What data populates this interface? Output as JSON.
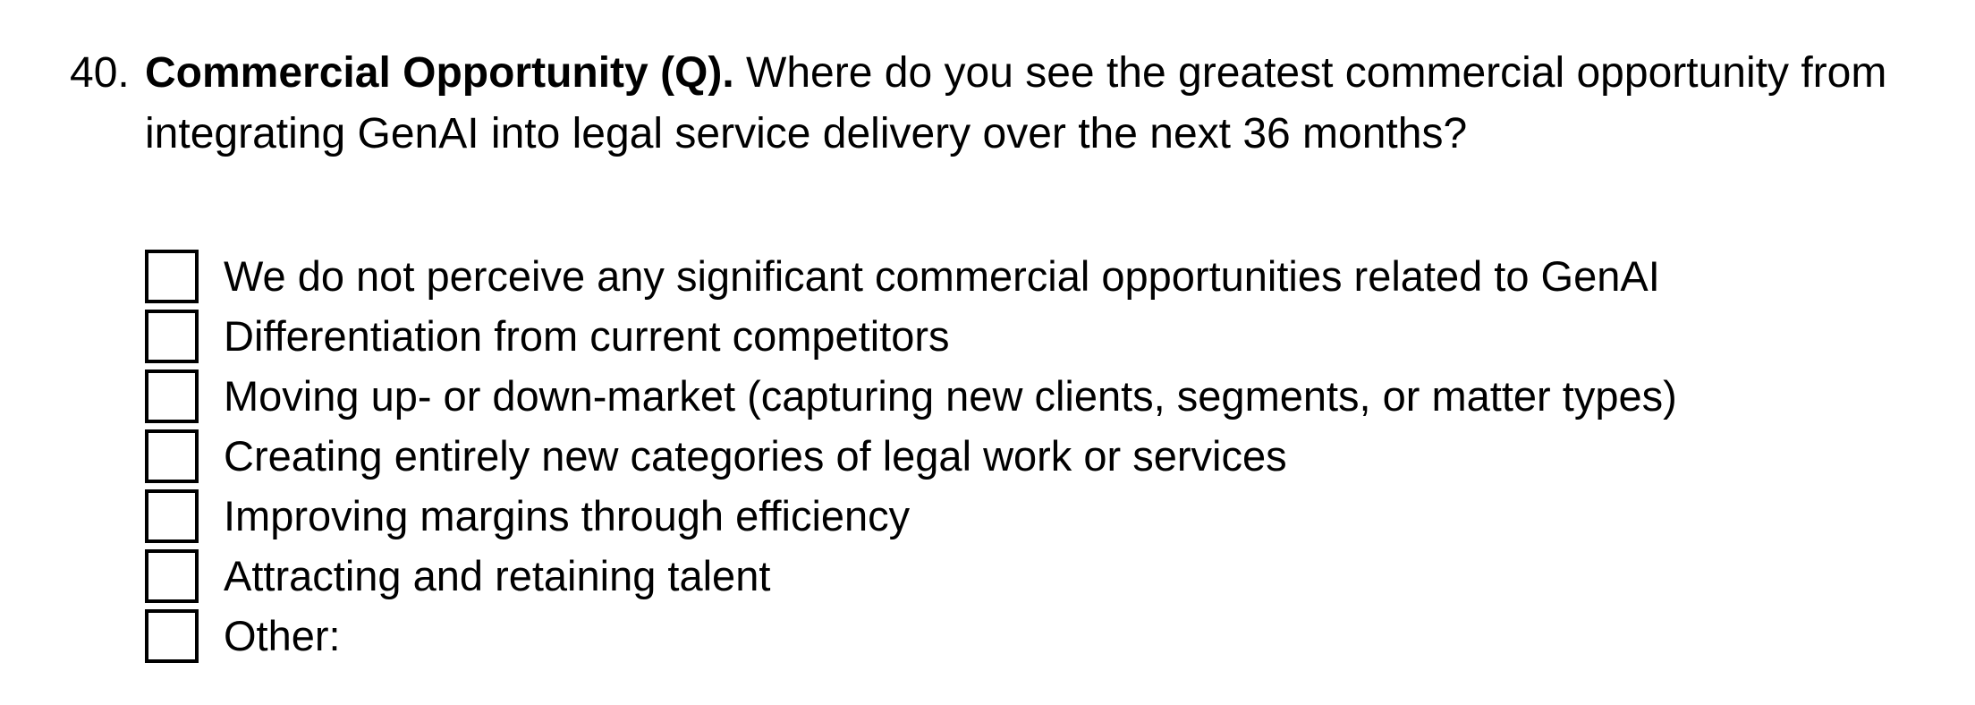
{
  "question": {
    "number": "40.",
    "title": "Commercial Opportunity (Q).",
    "text": " Where do you see the greatest commercial opportunity from integrating GenAI into legal service delivery over the next 36 months?"
  },
  "options": [
    {
      "label": "We do not perceive any significant commercial opportunities related to GenAI",
      "checked": false
    },
    {
      "label": "Differentiation from current competitors",
      "checked": false
    },
    {
      "label": "Moving up- or down-market (capturing new clients, segments, or matter types)",
      "checked": false
    },
    {
      "label": "Creating entirely new categories of legal work or services",
      "checked": false
    },
    {
      "label": "Improving margins through efficiency",
      "checked": false
    },
    {
      "label": "Attracting and retaining talent",
      "checked": false
    },
    {
      "label": "Other:",
      "checked": false
    }
  ]
}
